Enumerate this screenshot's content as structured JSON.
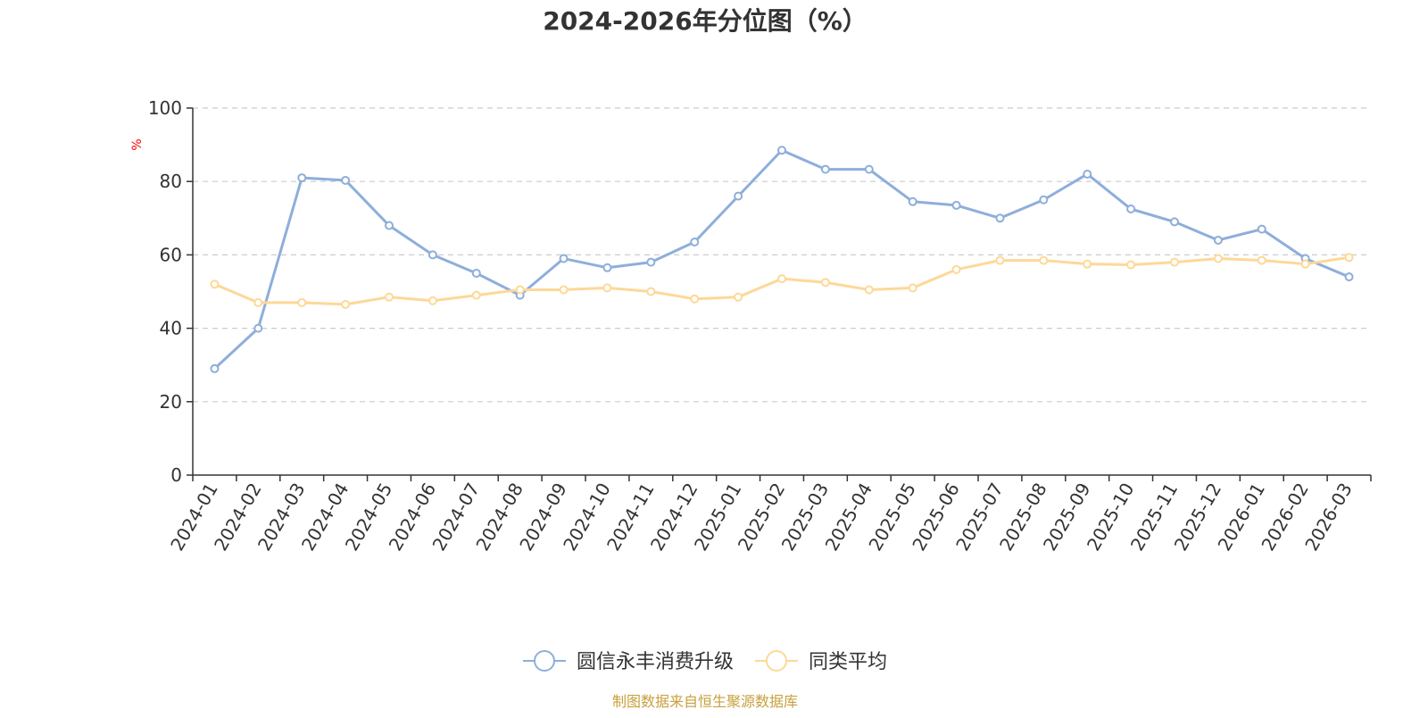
{
  "chart_data": {
    "type": "line",
    "title": "2024-2026年分位图（%）",
    "ylabel": "%",
    "xlabel": "",
    "ylim": [
      0,
      100
    ],
    "yticks": [
      0,
      20,
      40,
      60,
      80,
      100
    ],
    "grid": true,
    "legend_position": "bottom-center",
    "categories": [
      "2024-01",
      "2024-02",
      "2024-03",
      "2024-04",
      "2024-05",
      "2024-06",
      "2024-07",
      "2024-08",
      "2024-09",
      "2024-10",
      "2024-11",
      "2024-12",
      "2025-01",
      "2025-02",
      "2025-03",
      "2025-04",
      "2025-05",
      "2025-06",
      "2025-07",
      "2025-08",
      "2025-09",
      "2025-10",
      "2025-11",
      "2025-12",
      "2026-01",
      "2026-02",
      "2026-03"
    ],
    "series": [
      {
        "name": "圆信永丰消费升级",
        "color": "#8eaedb",
        "values": [
          29,
          40,
          81,
          80.3,
          68,
          60,
          55,
          49,
          59,
          56.5,
          58,
          63.5,
          76,
          88.5,
          83.3,
          83.3,
          74.5,
          73.5,
          70,
          75,
          82,
          72.5,
          69,
          64,
          67,
          59,
          54
        ]
      },
      {
        "name": "同类平均",
        "color": "#fdd898",
        "values": [
          52,
          47,
          47,
          46.5,
          48.5,
          47.5,
          49,
          50.5,
          50.5,
          51,
          50,
          48,
          48.5,
          53.5,
          52.5,
          50.5,
          51,
          56,
          58.5,
          58.5,
          57.5,
          57.3,
          58,
          59,
          58.5,
          57.5,
          59.3
        ]
      }
    ],
    "source": "制图数据来自恒生聚源数据库"
  },
  "colors": {
    "axis": "#333333",
    "grid": "#cccccc",
    "ylabel": "#ff0000",
    "source": "#c8a03c"
  }
}
